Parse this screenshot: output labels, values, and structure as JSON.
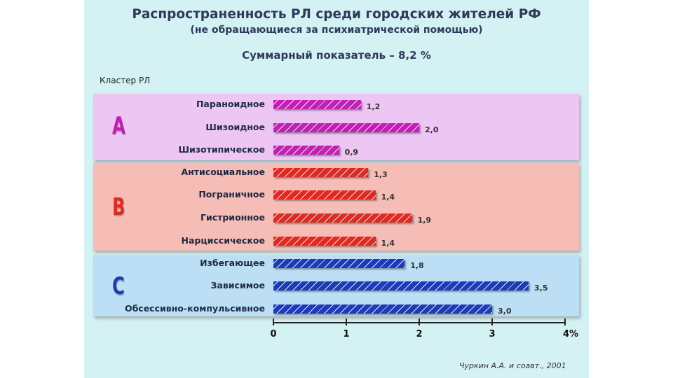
{
  "title": "Распространенность РЛ среди городских жителей РФ",
  "subtitle": "(не обращающиеся за психиатрической помощью)",
  "summary": "Суммарный показатель – 8,2 %",
  "axis_heading": "Кластер РЛ",
  "citation": "Чуркин А.А. и соавт., 2001",
  "colors": {
    "A": "#c21fb4",
    "B": "#dc2b24",
    "C": "#1f3ab8"
  },
  "chart_data": {
    "type": "bar",
    "orientation": "horizontal",
    "xlim": [
      0,
      4
    ],
    "xunit": "%",
    "xticks": [
      "0",
      "1",
      "2",
      "3",
      "4%"
    ],
    "clusters": [
      {
        "name": "A",
        "categories": [
          "Параноидное",
          "Шизоидное",
          "Шизотипическое"
        ],
        "values": [
          1.2,
          2.0,
          0.9
        ],
        "labels": [
          "1,2",
          "2,0",
          "0,9"
        ]
      },
      {
        "name": "B",
        "categories": [
          "Антисоциальное",
          "Пограничное",
          "Гистрионное",
          "Нарциссическое"
        ],
        "values": [
          1.3,
          1.4,
          1.9,
          1.4
        ],
        "labels": [
          "1,3",
          "1,4",
          "1,9",
          "1,4"
        ]
      },
      {
        "name": "C",
        "categories": [
          "Избегающее",
          "Зависимое",
          "Обсессивно-компульсивное"
        ],
        "values": [
          1.8,
          3.5,
          3.0
        ],
        "labels": [
          "1,8",
          "3,5",
          "3,0"
        ]
      }
    ]
  }
}
